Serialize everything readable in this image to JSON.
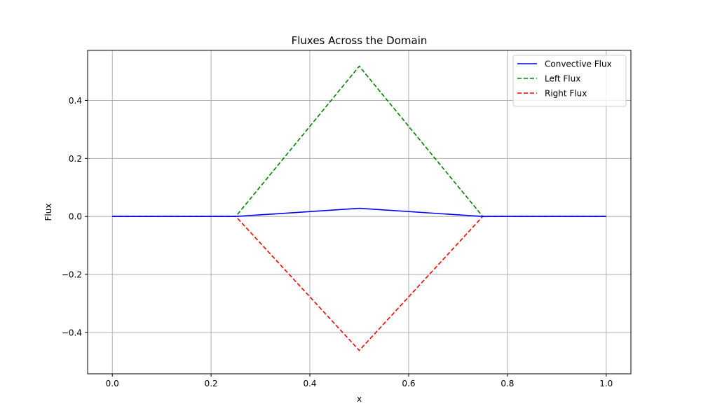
{
  "chart_data": {
    "type": "line",
    "title": "Fluxes Across the Domain",
    "xlabel": "x",
    "ylabel": "Flux",
    "xlim": [
      -0.05,
      1.05
    ],
    "ylim": [
      -0.5425,
      0.5725
    ],
    "xticks": [
      {
        "value": 0.0,
        "label": "0.0"
      },
      {
        "value": 0.2,
        "label": "0.2"
      },
      {
        "value": 0.4,
        "label": "0.4"
      },
      {
        "value": 0.6,
        "label": "0.6"
      },
      {
        "value": 0.8,
        "label": "0.8"
      },
      {
        "value": 1.0,
        "label": "1.0"
      }
    ],
    "yticks": [
      {
        "value": -0.4,
        "label": "−0.4"
      },
      {
        "value": -0.2,
        "label": "−0.2"
      },
      {
        "value": 0.0,
        "label": "0.0"
      },
      {
        "value": 0.2,
        "label": "0.2"
      },
      {
        "value": 0.4,
        "label": "0.4"
      }
    ],
    "grid": true,
    "legend_position": "top-right",
    "series": [
      {
        "name": "Convective Flux",
        "color": "#0000ff",
        "style": "solid",
        "x": [
          0.0,
          0.25,
          0.5,
          0.75,
          1.0
        ],
        "y": [
          0.0,
          0.0,
          0.028,
          0.0,
          0.0
        ]
      },
      {
        "name": "Left Flux",
        "color": "#008000",
        "style": "dashed",
        "x": [
          0.0,
          0.25,
          0.5,
          0.75,
          1.0
        ],
        "y": [
          0.0,
          0.0,
          0.518,
          0.0,
          0.0
        ]
      },
      {
        "name": "Right Flux",
        "color": "#ff0000",
        "style": "dashed",
        "x": [
          0.0,
          0.25,
          0.5,
          0.75,
          1.0
        ],
        "y": [
          0.0,
          0.0,
          -0.462,
          0.0,
          0.0
        ]
      }
    ]
  }
}
